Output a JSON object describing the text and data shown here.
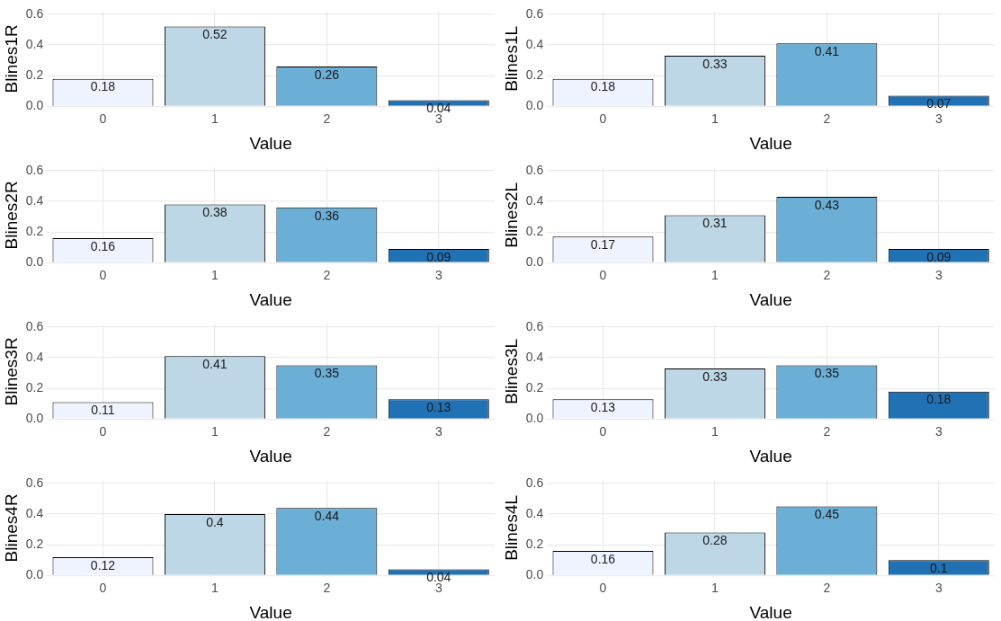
{
  "chart_data": [
    {
      "type": "bar",
      "categories": [
        "0",
        "1",
        "2",
        "3"
      ],
      "values": [
        0.18,
        0.52,
        0.26,
        0.04
      ],
      "colors": [
        "#eff3ff",
        "#bdd7e7",
        "#6baed6",
        "#2171b5"
      ],
      "xlabel": "Value",
      "ylabel": "Blines1R",
      "ylim": [
        0,
        0.62
      ],
      "yticks": [
        {
          "value": 0,
          "label": "0.0"
        },
        {
          "value": 0.2,
          "label": "0.2"
        },
        {
          "value": 0.4,
          "label": "0.4"
        },
        {
          "value": 0.6,
          "label": "0.6"
        }
      ],
      "grid": true,
      "data_labels": true
    },
    {
      "type": "bar",
      "categories": [
        "0",
        "1",
        "2",
        "3"
      ],
      "values": [
        0.18,
        0.33,
        0.41,
        0.07
      ],
      "colors": [
        "#eff3ff",
        "#bdd7e7",
        "#6baed6",
        "#2171b5"
      ],
      "xlabel": "Value",
      "ylabel": "Blines1L",
      "ylim": [
        0,
        0.62
      ],
      "yticks": [
        {
          "value": 0,
          "label": "0.0"
        },
        {
          "value": 0.2,
          "label": "0.2"
        },
        {
          "value": 0.4,
          "label": "0.4"
        },
        {
          "value": 0.6,
          "label": "0.6"
        }
      ],
      "grid": true,
      "data_labels": true
    },
    {
      "type": "bar",
      "categories": [
        "0",
        "1",
        "2",
        "3"
      ],
      "values": [
        0.16,
        0.38,
        0.36,
        0.09
      ],
      "colors": [
        "#eff3ff",
        "#bdd7e7",
        "#6baed6",
        "#2171b5"
      ],
      "xlabel": "Value",
      "ylabel": "Blines2R",
      "ylim": [
        0,
        0.62
      ],
      "yticks": [
        {
          "value": 0,
          "label": "0.0"
        },
        {
          "value": 0.2,
          "label": "0.2"
        },
        {
          "value": 0.4,
          "label": "0.4"
        },
        {
          "value": 0.6,
          "label": "0.6"
        }
      ],
      "grid": true,
      "data_labels": true
    },
    {
      "type": "bar",
      "categories": [
        "0",
        "1",
        "2",
        "3"
      ],
      "values": [
        0.17,
        0.31,
        0.43,
        0.09
      ],
      "colors": [
        "#eff3ff",
        "#bdd7e7",
        "#6baed6",
        "#2171b5"
      ],
      "xlabel": "Value",
      "ylabel": "Blines2L",
      "ylim": [
        0,
        0.62
      ],
      "yticks": [
        {
          "value": 0,
          "label": "0.0"
        },
        {
          "value": 0.2,
          "label": "0.2"
        },
        {
          "value": 0.4,
          "label": "0.4"
        },
        {
          "value": 0.6,
          "label": "0.6"
        }
      ],
      "grid": true,
      "data_labels": true
    },
    {
      "type": "bar",
      "categories": [
        "0",
        "1",
        "2",
        "3"
      ],
      "values": [
        0.11,
        0.41,
        0.35,
        0.13
      ],
      "colors": [
        "#eff3ff",
        "#bdd7e7",
        "#6baed6",
        "#2171b5"
      ],
      "xlabel": "Value",
      "ylabel": "Blines3R",
      "ylim": [
        0,
        0.62
      ],
      "yticks": [
        {
          "value": 0,
          "label": "0.0"
        },
        {
          "value": 0.2,
          "label": "0.2"
        },
        {
          "value": 0.4,
          "label": "0.4"
        },
        {
          "value": 0.6,
          "label": "0.6"
        }
      ],
      "grid": true,
      "data_labels": true
    },
    {
      "type": "bar",
      "categories": [
        "0",
        "1",
        "2",
        "3"
      ],
      "values": [
        0.13,
        0.33,
        0.35,
        0.18
      ],
      "colors": [
        "#eff3ff",
        "#bdd7e7",
        "#6baed6",
        "#2171b5"
      ],
      "xlabel": "Value",
      "ylabel": "Blines3L",
      "ylim": [
        0,
        0.62
      ],
      "yticks": [
        {
          "value": 0,
          "label": "0.0"
        },
        {
          "value": 0.2,
          "label": "0.2"
        },
        {
          "value": 0.4,
          "label": "0.4"
        },
        {
          "value": 0.6,
          "label": "0.6"
        }
      ],
      "grid": true,
      "data_labels": true
    },
    {
      "type": "bar",
      "categories": [
        "0",
        "1",
        "2",
        "3"
      ],
      "values": [
        0.12,
        0.4,
        0.44,
        0.04
      ],
      "colors": [
        "#eff3ff",
        "#bdd7e7",
        "#6baed6",
        "#2171b5"
      ],
      "xlabel": "Value",
      "ylabel": "Blines4R",
      "ylim": [
        0,
        0.62
      ],
      "yticks": [
        {
          "value": 0,
          "label": "0.0"
        },
        {
          "value": 0.2,
          "label": "0.2"
        },
        {
          "value": 0.4,
          "label": "0.4"
        },
        {
          "value": 0.6,
          "label": "0.6"
        }
      ],
      "grid": true,
      "data_labels": true
    },
    {
      "type": "bar",
      "categories": [
        "0",
        "1",
        "2",
        "3"
      ],
      "values": [
        0.16,
        0.28,
        0.45,
        0.1
      ],
      "colors": [
        "#eff3ff",
        "#bdd7e7",
        "#6baed6",
        "#2171b5"
      ],
      "xlabel": "Value",
      "ylabel": "Blines4L",
      "ylim": [
        0,
        0.62
      ],
      "yticks": [
        {
          "value": 0,
          "label": "0.0"
        },
        {
          "value": 0.2,
          "label": "0.2"
        },
        {
          "value": 0.4,
          "label": "0.4"
        },
        {
          "value": 0.6,
          "label": "0.6"
        }
      ],
      "grid": true,
      "data_labels": true
    }
  ]
}
